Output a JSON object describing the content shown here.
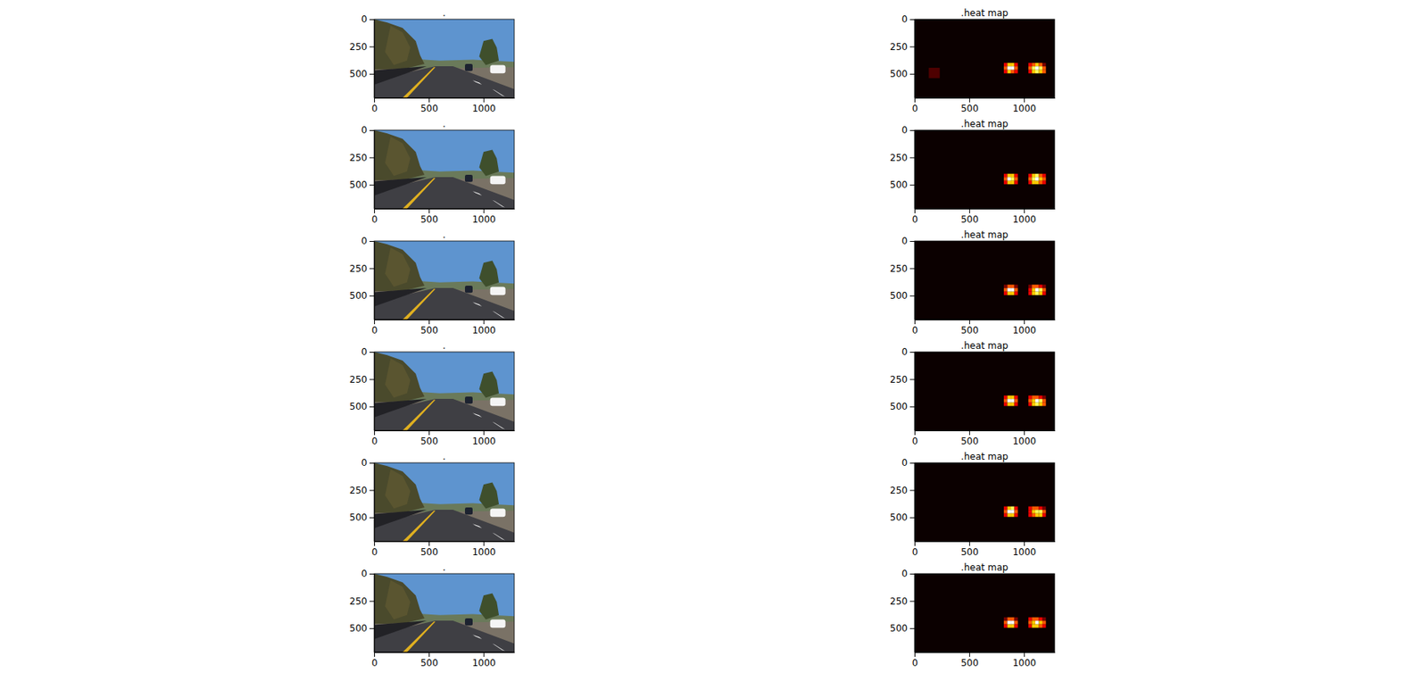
{
  "chart_data": [
    {
      "type": "image",
      "title": ".",
      "xlim": [
        0,
        1280
      ],
      "ylim": [
        720,
        0
      ],
      "xticks": [
        0,
        500,
        1000
      ],
      "yticks": [
        0,
        250,
        500
      ]
    },
    {
      "type": "heatmap",
      "title": ".heat map",
      "xlim": [
        0,
        1280
      ],
      "ylim": [
        720,
        0
      ],
      "xticks": [
        0,
        500,
        1000
      ],
      "yticks": [
        0,
        250,
        500
      ],
      "zlim": [
        0,
        6
      ],
      "cells": [
        {
          "x": [
            816,
            848,
            880,
            912,
            944
          ],
          "y": [
            400,
            432,
            464,
            496
          ],
          "values": [
            [
              2,
              4,
              4,
              2
            ],
            [
              3,
              6,
              6,
              3
            ],
            [
              2,
              4,
              3,
              2
            ]
          ]
        },
        {
          "x": [
            1040,
            1072,
            1104,
            1136,
            1168,
            1200
          ],
          "y": [
            400,
            432,
            464,
            496
          ],
          "values": [
            [
              2,
              3,
              4,
              3,
              1
            ],
            [
              3,
              5,
              6,
              5,
              3
            ],
            [
              2,
              4,
              5,
              4,
              3
            ]
          ]
        },
        {
          "x": [
            130,
            230
          ],
          "y": [
            445,
            540
          ],
          "values": [
            [
              0.6
            ]
          ]
        }
      ]
    },
    {
      "type": "image",
      "title": ".",
      "xlim": [
        0,
        1280
      ],
      "ylim": [
        720,
        0
      ],
      "xticks": [
        0,
        500,
        1000
      ],
      "yticks": [
        0,
        250,
        500
      ]
    },
    {
      "type": "heatmap",
      "title": ".heat map",
      "xlim": [
        0,
        1280
      ],
      "ylim": [
        720,
        0
      ],
      "xticks": [
        0,
        500,
        1000
      ],
      "yticks": [
        0,
        250,
        500
      ],
      "zlim": [
        0,
        6
      ],
      "cells": [
        {
          "x": [
            816,
            848,
            880,
            912,
            944
          ],
          "y": [
            400,
            432,
            464,
            496
          ],
          "values": [
            [
              2,
              4,
              4,
              2
            ],
            [
              3,
              6,
              5,
              3
            ],
            [
              2,
              4,
              4,
              2
            ]
          ]
        },
        {
          "x": [
            1040,
            1072,
            1104,
            1136,
            1168,
            1200
          ],
          "y": [
            400,
            432,
            464,
            496
          ],
          "values": [
            [
              2,
              4,
              5,
              3,
              2
            ],
            [
              3,
              5,
              6,
              4,
              3
            ],
            [
              2,
              4,
              4,
              3,
              2
            ]
          ]
        }
      ]
    },
    {
      "type": "image",
      "title": ".",
      "xlim": [
        0,
        1280
      ],
      "ylim": [
        720,
        0
      ],
      "xticks": [
        0,
        500,
        1000
      ],
      "yticks": [
        0,
        250,
        500
      ]
    },
    {
      "type": "heatmap",
      "title": ".heat map",
      "xlim": [
        0,
        1280
      ],
      "ylim": [
        720,
        0
      ],
      "xticks": [
        0,
        500,
        1000
      ],
      "yticks": [
        0,
        250,
        500
      ],
      "zlim": [
        0,
        6
      ],
      "cells": [
        {
          "x": [
            816,
            848,
            880,
            912,
            944
          ],
          "y": [
            400,
            432,
            464,
            496
          ],
          "values": [
            [
              1,
              3,
              3,
              1
            ],
            [
              3,
              6,
              6,
              3
            ],
            [
              2,
              4,
              4,
              2
            ]
          ]
        },
        {
          "x": [
            1040,
            1072,
            1104,
            1136,
            1168,
            1200
          ],
          "y": [
            400,
            432,
            464,
            496
          ],
          "values": [
            [
              1,
              3,
              3,
              2,
              1
            ],
            [
              2,
              4,
              6,
              5,
              3
            ],
            [
              2,
              4,
              5,
              4,
              2
            ]
          ]
        }
      ]
    },
    {
      "type": "image",
      "title": ".",
      "xlim": [
        0,
        1280
      ],
      "ylim": [
        720,
        0
      ],
      "xticks": [
        0,
        500,
        1000
      ],
      "yticks": [
        0,
        250,
        500
      ]
    },
    {
      "type": "heatmap",
      "title": ".heat map",
      "xlim": [
        0,
        1280
      ],
      "ylim": [
        720,
        0
      ],
      "xticks": [
        0,
        500,
        1000
      ],
      "yticks": [
        0,
        250,
        500
      ],
      "zlim": [
        0,
        6
      ],
      "cells": [
        {
          "x": [
            816,
            848,
            880,
            912,
            944
          ],
          "y": [
            400,
            432,
            464,
            496
          ],
          "values": [
            [
              2,
              4,
              4,
              2
            ],
            [
              3,
              6,
              6,
              3
            ],
            [
              2,
              4,
              4,
              2
            ]
          ]
        },
        {
          "x": [
            1040,
            1072,
            1104,
            1136,
            1168,
            1200
          ],
          "y": [
            400,
            432,
            464,
            496
          ],
          "values": [
            [
              2,
              3,
              3,
              2,
              1
            ],
            [
              3,
              4,
              6,
              5,
              3
            ],
            [
              2,
              4,
              5,
              4,
              3
            ]
          ]
        }
      ]
    },
    {
      "type": "image",
      "title": ".",
      "xlim": [
        0,
        1280
      ],
      "ylim": [
        720,
        0
      ],
      "xticks": [
        0,
        500,
        1000
      ],
      "yticks": [
        0,
        250,
        500
      ]
    },
    {
      "type": "heatmap",
      "title": ".heat map",
      "xlim": [
        0,
        1280
      ],
      "ylim": [
        720,
        0
      ],
      "xticks": [
        0,
        500,
        1000
      ],
      "yticks": [
        0,
        250,
        500
      ],
      "zlim": [
        0,
        6
      ],
      "cells": [
        {
          "x": [
            816,
            848,
            880,
            912,
            944
          ],
          "y": [
            400,
            432,
            464,
            496
          ],
          "values": [
            [
              2,
              4,
              5,
              2
            ],
            [
              3,
              6,
              6,
              3
            ],
            [
              2,
              4,
              4,
              2
            ]
          ]
        },
        {
          "x": [
            1040,
            1072,
            1104,
            1136,
            1168,
            1200
          ],
          "y": [
            400,
            432,
            464,
            496
          ],
          "values": [
            [
              2,
              3,
              3,
              2,
              1
            ],
            [
              2,
              4,
              5,
              5,
              3
            ],
            [
              2,
              3,
              4,
              4,
              2
            ]
          ]
        }
      ]
    },
    {
      "type": "image",
      "title": ".",
      "xlim": [
        0,
        1280
      ],
      "ylim": [
        720,
        0
      ],
      "xticks": [
        0,
        500,
        1000
      ],
      "yticks": [
        0,
        250,
        500
      ]
    },
    {
      "type": "heatmap",
      "title": ".heat map",
      "xlim": [
        0,
        1280
      ],
      "ylim": [
        720,
        0
      ],
      "xticks": [
        0,
        500,
        1000
      ],
      "yticks": [
        0,
        250,
        500
      ],
      "zlim": [
        0,
        6
      ],
      "cells": [
        {
          "x": [
            816,
            848,
            880,
            912,
            944
          ],
          "y": [
            400,
            432,
            464,
            496
          ],
          "values": [
            [
              1,
              3,
              3,
              1
            ],
            [
              3,
              6,
              6,
              3
            ],
            [
              2,
              4,
              4,
              2
            ]
          ]
        },
        {
          "x": [
            1040,
            1072,
            1104,
            1136,
            1168,
            1200
          ],
          "y": [
            400,
            432,
            464,
            496
          ],
          "values": [
            [
              2,
              3,
              3,
              2,
              1
            ],
            [
              3,
              4,
              6,
              4,
              3
            ],
            [
              2,
              4,
              4,
              3,
              2
            ]
          ]
        }
      ]
    }
  ]
}
